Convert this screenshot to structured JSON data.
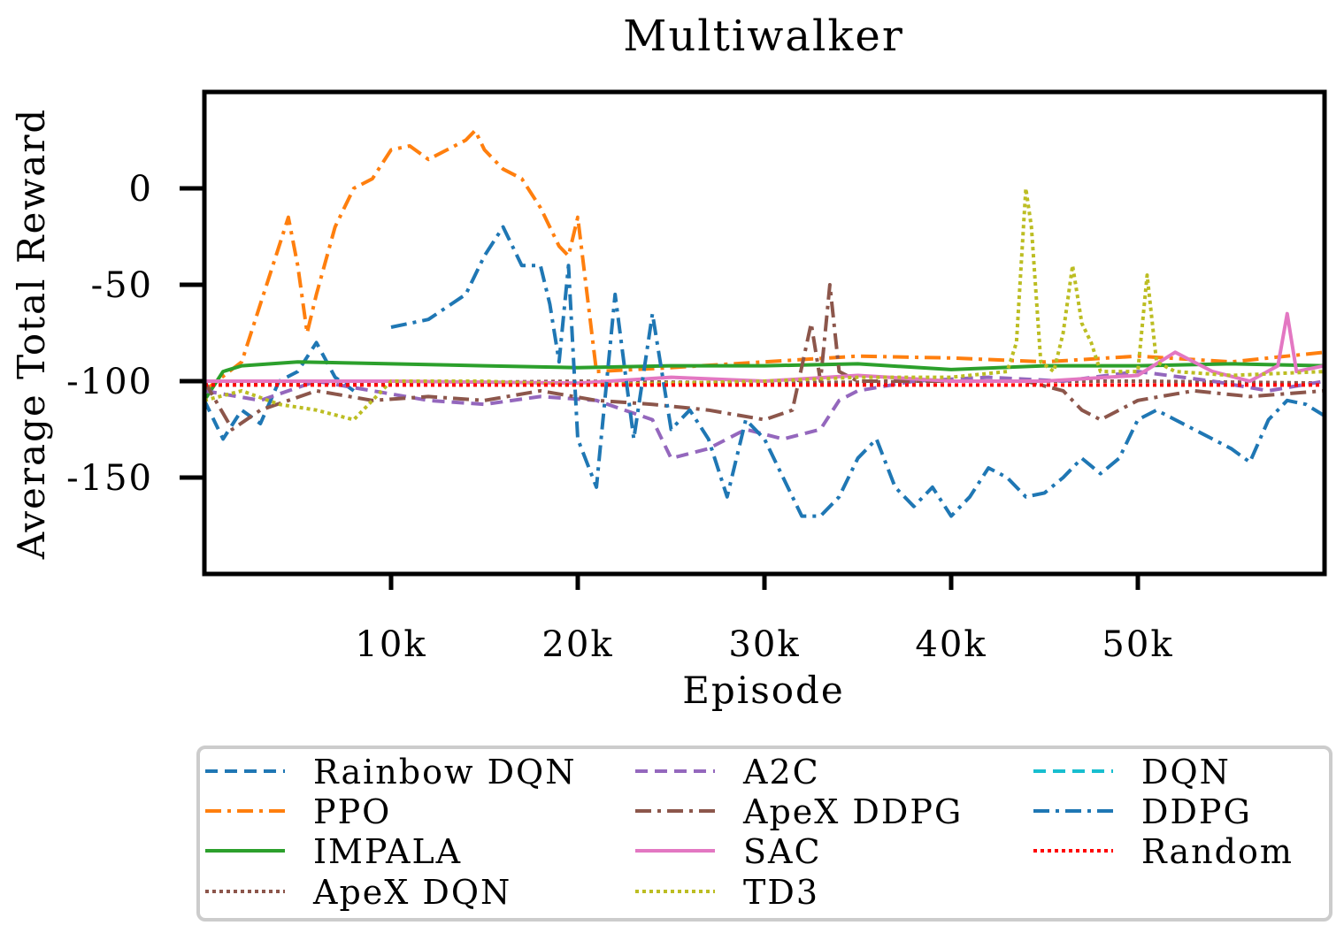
{
  "chart_data": {
    "type": "line",
    "title": "Multiwalker",
    "xlabel": "Episode",
    "ylabel": "Average Total Reward",
    "xlim": [
      0,
      60000
    ],
    "ylim": [
      -200,
      50
    ],
    "xticks": [
      10000,
      20000,
      30000,
      40000,
      50000
    ],
    "xtick_labels": [
      "10k",
      "20k",
      "30k",
      "40k",
      "50k"
    ],
    "yticks": [
      0,
      -50,
      -100,
      -150
    ],
    "ytick_labels": [
      "0",
      "-50",
      "-100",
      "-150"
    ],
    "grid": false,
    "legend_position": "bottom",
    "series": [
      {
        "name": "Rainbow DQN",
        "color": "#1f77b4",
        "dash": "dashed",
        "x": [
          0,
          1000,
          2000,
          3000,
          4000,
          5000,
          6000,
          7000,
          8000
        ],
        "y": [
          -110,
          -130,
          -115,
          -122,
          -100,
          -95,
          -80,
          -98,
          -105
        ]
      },
      {
        "name": "PPO",
        "color": "#ff7f0e",
        "dash": "dashdot",
        "x": [
          0,
          2000,
          3000,
          4000,
          4500,
          5000,
          5500,
          6000,
          7000,
          8000,
          9000,
          10000,
          11000,
          12000,
          13000,
          14000,
          14500,
          15000,
          16000,
          17000,
          18000,
          19000,
          19500,
          20000,
          21000,
          25000,
          30000,
          35000,
          40000,
          45000,
          50000,
          55000,
          60000
        ],
        "y": [
          -105,
          -90,
          -60,
          -30,
          -15,
          -40,
          -75,
          -55,
          -20,
          0,
          5,
          20,
          22,
          15,
          20,
          25,
          30,
          20,
          10,
          5,
          -10,
          -30,
          -35,
          -15,
          -95,
          -93,
          -90,
          -87,
          -88,
          -90,
          -87,
          -90,
          -85
        ]
      },
      {
        "name": "IMPALA",
        "color": "#2ca02c",
        "dash": "solid",
        "x": [
          0,
          1000,
          2000,
          5000,
          10000,
          15000,
          20000,
          25000,
          30000,
          35000,
          40000,
          45000,
          50000,
          55000,
          60000
        ],
        "y": [
          -110,
          -95,
          -92,
          -90,
          -91,
          -92,
          -93,
          -92,
          -92,
          -91,
          -94,
          -92,
          -92,
          -91,
          -92
        ]
      },
      {
        "name": "ApeX DQN",
        "color": "#8c564b",
        "dash": "dotted",
        "x": [
          0,
          10000,
          20000,
          30000,
          40000,
          50000,
          60000
        ],
        "y": [
          -102,
          -101,
          -100,
          -101,
          -100,
          -100,
          -101
        ]
      },
      {
        "name": "A2C",
        "color": "#9467bd",
        "dash": "dashed",
        "x": [
          0,
          3000,
          6000,
          9000,
          12000,
          15000,
          18000,
          21000,
          24000,
          25000,
          27000,
          29000,
          31000,
          33000,
          34000,
          35000,
          38000,
          42000,
          46000,
          50000,
          54000,
          57000,
          60000
        ],
        "y": [
          -105,
          -110,
          -100,
          -105,
          -110,
          -112,
          -108,
          -110,
          -120,
          -140,
          -135,
          -125,
          -130,
          -125,
          -110,
          -105,
          -100,
          -98,
          -100,
          -95,
          -100,
          -105,
          -100
        ]
      },
      {
        "name": "ApeX DDPG",
        "color": "#8c564b",
        "dash": "dashdot",
        "x": [
          0,
          1500,
          3000,
          6000,
          9000,
          12000,
          15000,
          18000,
          21000,
          24000,
          27000,
          30000,
          31500,
          32500,
          33000,
          33500,
          34000,
          35000,
          38000,
          41000,
          44000,
          46000,
          47000,
          48000,
          50000,
          53000,
          56000,
          60000
        ],
        "y": [
          -100,
          -125,
          -115,
          -105,
          -110,
          -108,
          -110,
          -105,
          -110,
          -112,
          -115,
          -120,
          -115,
          -70,
          -100,
          -50,
          -95,
          -100,
          -100,
          -100,
          -100,
          -105,
          -115,
          -120,
          -110,
          -105,
          -108,
          -105
        ]
      },
      {
        "name": "SAC",
        "color": "#e377c2",
        "dash": "solid",
        "x": [
          0,
          10000,
          20000,
          25000,
          30000,
          35000,
          40000,
          45000,
          50000,
          52000,
          54000,
          56000,
          57500,
          58000,
          58500,
          60000
        ],
        "y": [
          -100,
          -100,
          -101,
          -98,
          -100,
          -97,
          -100,
          -100,
          -97,
          -85,
          -95,
          -100,
          -92,
          -65,
          -95,
          -92
        ]
      },
      {
        "name": "TD3",
        "color": "#bcbd22",
        "dash": "dotted",
        "x": [
          0,
          2000,
          4000,
          6000,
          8000,
          10000,
          15000,
          20000,
          30000,
          35000,
          40000,
          43000,
          43500,
          44000,
          44300,
          44800,
          45500,
          46000,
          46500,
          47000,
          47500,
          48000,
          49000,
          50000,
          50500,
          51000,
          52000,
          55000,
          60000
        ],
        "y": [
          -110,
          -105,
          -112,
          -115,
          -120,
          -100,
          -100,
          -102,
          -100,
          -98,
          -98,
          -95,
          -80,
          0,
          -20,
          -90,
          -95,
          -75,
          -40,
          -70,
          -80,
          -95,
          -95,
          -95,
          -45,
          -90,
          -95,
          -97,
          -95
        ]
      },
      {
        "name": "DQN",
        "color": "#17becf",
        "dash": "dashed",
        "x": [],
        "y": []
      },
      {
        "name": "DDPG",
        "color": "#1f77b4",
        "dash": "dashdot",
        "x": [
          10000,
          12000,
          14000,
          15000,
          16000,
          17000,
          18000,
          18500,
          19000,
          19500,
          20000,
          21000,
          22000,
          23000,
          24000,
          25000,
          26000,
          27000,
          28000,
          29000,
          30000,
          31000,
          32000,
          33000,
          34000,
          35000,
          36000,
          37000,
          38000,
          39000,
          40000,
          41000,
          42000,
          43000,
          44000,
          45000,
          46000,
          47000,
          48000,
          49000,
          50000,
          51000,
          52000,
          53000,
          54000,
          55000,
          56000,
          57000,
          58000,
          59000,
          60000
        ],
        "y": [
          -72,
          -68,
          -55,
          -35,
          -20,
          -40,
          -40,
          -60,
          -90,
          -40,
          -130,
          -155,
          -55,
          -130,
          -65,
          -125,
          -115,
          -130,
          -160,
          -120,
          -130,
          -150,
          -170,
          -170,
          -160,
          -140,
          -130,
          -155,
          -165,
          -155,
          -170,
          -160,
          -145,
          -150,
          -160,
          -158,
          -150,
          -140,
          -148,
          -140,
          -120,
          -115,
          -120,
          -125,
          -130,
          -135,
          -142,
          -120,
          -110,
          -112,
          -118
        ]
      },
      {
        "name": "Random",
        "color": "#ff0000",
        "dash": "dotted",
        "x": [
          0,
          60000
        ],
        "y": [
          -102,
          -102
        ]
      }
    ]
  }
}
